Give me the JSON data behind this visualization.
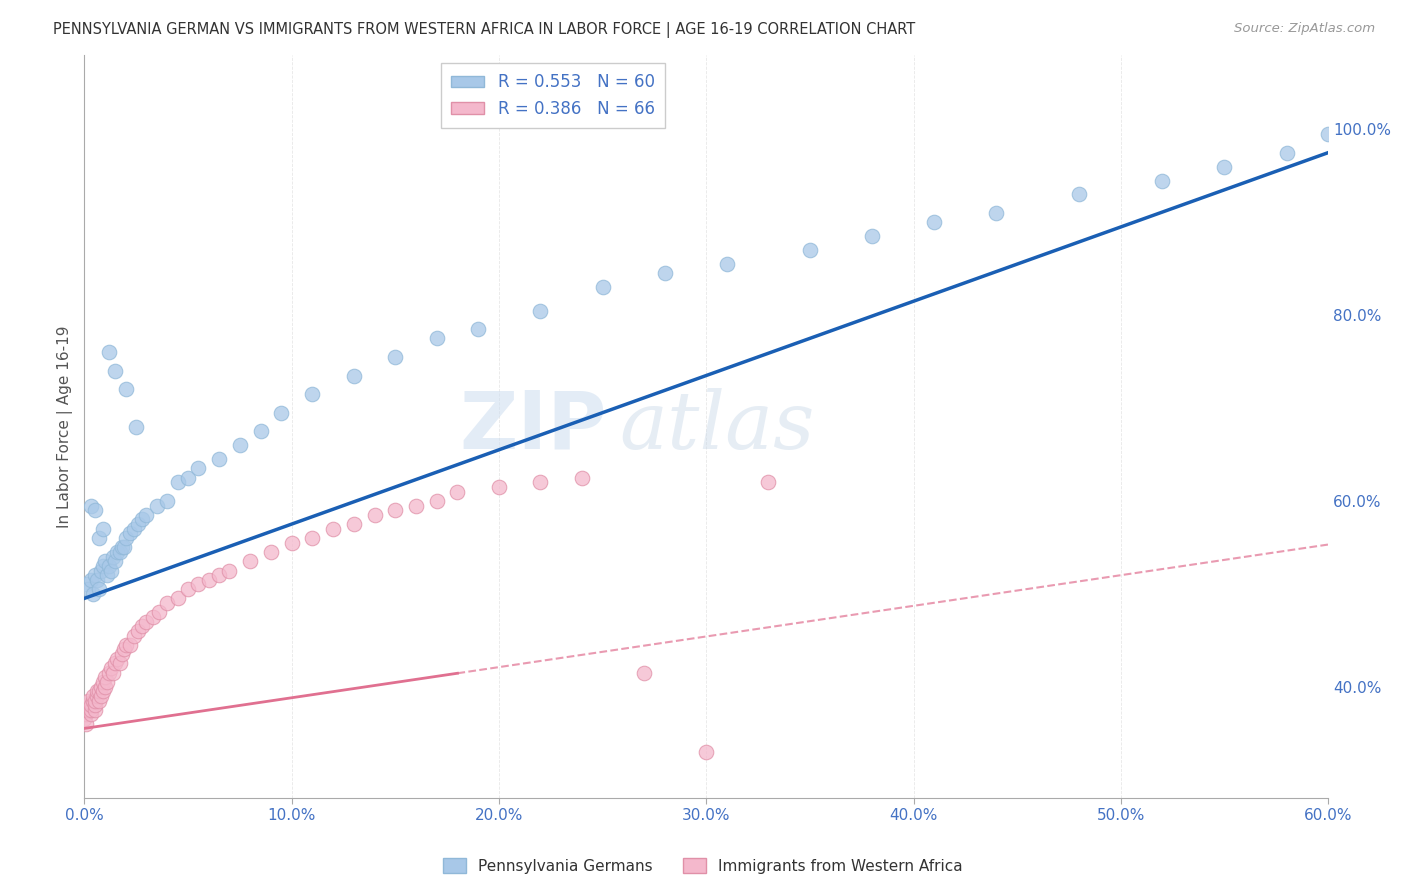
{
  "title": "PENNSYLVANIA GERMAN VS IMMIGRANTS FROM WESTERN AFRICA IN LABOR FORCE | AGE 16-19 CORRELATION CHART",
  "source": "Source: ZipAtlas.com",
  "ylabel_label": "In Labor Force | Age 16-19",
  "x_min": 0.0,
  "x_max": 0.6,
  "y_min": 0.28,
  "y_max": 1.08,
  "blue_R": 0.553,
  "blue_N": 60,
  "pink_R": 0.386,
  "pink_N": 66,
  "blue_color": "#a8c8e8",
  "pink_color": "#f4b8cc",
  "blue_line_color": "#1a5fb4",
  "pink_line_color": "#e07090",
  "blue_line_intercept": 0.495,
  "blue_line_slope": 0.8,
  "pink_line_intercept": 0.355,
  "pink_line_slope": 0.33,
  "blue_points_x": [
    0.001,
    0.002,
    0.003,
    0.004,
    0.005,
    0.006,
    0.007,
    0.008,
    0.009,
    0.01,
    0.011,
    0.012,
    0.013,
    0.014,
    0.015,
    0.016,
    0.017,
    0.018,
    0.019,
    0.02,
    0.022,
    0.024,
    0.026,
    0.028,
    0.03,
    0.035,
    0.04,
    0.045,
    0.05,
    0.055,
    0.065,
    0.075,
    0.085,
    0.095,
    0.11,
    0.13,
    0.15,
    0.17,
    0.19,
    0.22,
    0.25,
    0.28,
    0.31,
    0.35,
    0.38,
    0.41,
    0.44,
    0.48,
    0.52,
    0.55,
    0.58,
    0.6,
    0.003,
    0.005,
    0.007,
    0.009,
    0.012,
    0.015,
    0.02,
    0.025
  ],
  "blue_points_y": [
    0.51,
    0.505,
    0.515,
    0.5,
    0.52,
    0.515,
    0.505,
    0.525,
    0.53,
    0.535,
    0.52,
    0.53,
    0.525,
    0.54,
    0.535,
    0.545,
    0.545,
    0.55,
    0.55,
    0.56,
    0.565,
    0.57,
    0.575,
    0.58,
    0.585,
    0.595,
    0.6,
    0.62,
    0.625,
    0.635,
    0.645,
    0.66,
    0.675,
    0.695,
    0.715,
    0.735,
    0.755,
    0.775,
    0.785,
    0.805,
    0.83,
    0.845,
    0.855,
    0.87,
    0.885,
    0.9,
    0.91,
    0.93,
    0.945,
    0.96,
    0.975,
    0.995,
    0.595,
    0.59,
    0.56,
    0.57,
    0.76,
    0.74,
    0.72,
    0.68
  ],
  "pink_points_x": [
    0.0,
    0.001,
    0.001,
    0.001,
    0.002,
    0.002,
    0.002,
    0.003,
    0.003,
    0.003,
    0.004,
    0.004,
    0.005,
    0.005,
    0.005,
    0.006,
    0.006,
    0.007,
    0.007,
    0.008,
    0.008,
    0.009,
    0.009,
    0.01,
    0.01,
    0.011,
    0.012,
    0.013,
    0.014,
    0.015,
    0.016,
    0.017,
    0.018,
    0.019,
    0.02,
    0.022,
    0.024,
    0.026,
    0.028,
    0.03,
    0.033,
    0.036,
    0.04,
    0.045,
    0.05,
    0.055,
    0.06,
    0.065,
    0.07,
    0.08,
    0.09,
    0.1,
    0.11,
    0.12,
    0.13,
    0.14,
    0.15,
    0.16,
    0.17,
    0.18,
    0.2,
    0.22,
    0.24,
    0.27,
    0.3,
    0.33
  ],
  "pink_points_y": [
    0.365,
    0.37,
    0.375,
    0.36,
    0.38,
    0.375,
    0.385,
    0.37,
    0.375,
    0.38,
    0.385,
    0.39,
    0.375,
    0.38,
    0.385,
    0.39,
    0.395,
    0.385,
    0.395,
    0.39,
    0.4,
    0.395,
    0.405,
    0.4,
    0.41,
    0.405,
    0.415,
    0.42,
    0.415,
    0.425,
    0.43,
    0.425,
    0.435,
    0.44,
    0.445,
    0.445,
    0.455,
    0.46,
    0.465,
    0.47,
    0.475,
    0.48,
    0.49,
    0.495,
    0.505,
    0.51,
    0.515,
    0.52,
    0.525,
    0.535,
    0.545,
    0.555,
    0.56,
    0.57,
    0.575,
    0.585,
    0.59,
    0.595,
    0.6,
    0.61,
    0.615,
    0.62,
    0.625,
    0.415,
    0.33,
    0.62
  ]
}
